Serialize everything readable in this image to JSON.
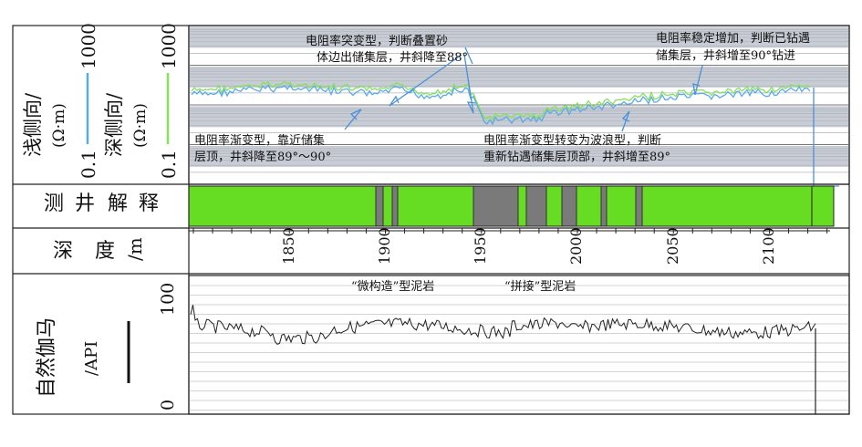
{
  "colors": {
    "shallow_curve": "#5aaae6",
    "deep_curve": "#86e05a",
    "interp_green": "#66dd22",
    "interp_gray": "#7a7a7a",
    "arrow": "#4a90d9",
    "grid_band": "#c8ccd4"
  },
  "track1": {
    "shallow_label": "浅侧向/",
    "shallow_unit": "(Ω·m)",
    "deep_label": "深侧向/",
    "deep_unit": "(Ω·m)",
    "scale_min": "0.1",
    "scale_max": "1000"
  },
  "annotations": {
    "a1_line1": "电阻率突变型，判断叠置砂",
    "a1_line2": "体边出储集层，井斜降至88°",
    "a2_line1": "电阻率稳定增加，判断已钻遇",
    "a2_line2": "储集层，井斜增至90°钻进",
    "a3_line1": "电阻率渐变型，靠近储集",
    "a3_line2": "层顶，井斜降至89°～90°",
    "a4_line1": "电阻率渐变型转变为波浪型，判断",
    "a4_line2": "重新钻遇储集层顶部，井斜增至89°"
  },
  "track2": {
    "label": [
      "测",
      "井",
      "解",
      "释"
    ]
  },
  "track3": {
    "label": [
      "深",
      "度",
      "/m"
    ],
    "ticks": [
      "1850",
      "1900",
      "1950",
      "2000",
      "2050",
      "2100"
    ]
  },
  "track4": {
    "label": "自然伽马",
    "unit": "/API",
    "scale_max": "100",
    "scale_min": "0",
    "note1": "“微构造”型泥岩",
    "note2": "“拼接”型泥岩"
  }
}
